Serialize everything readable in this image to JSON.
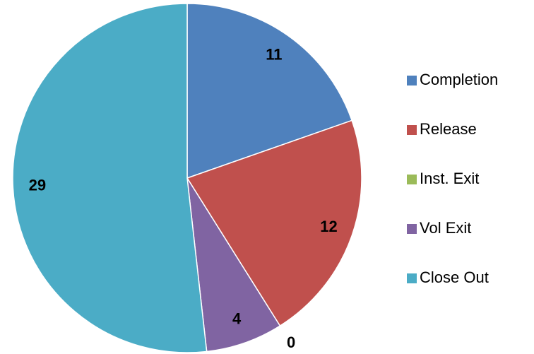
{
  "chart_data": {
    "type": "pie",
    "categories": [
      "Completion",
      "Release",
      "Inst. Exit",
      "Vol Exit",
      "Close Out"
    ],
    "values": [
      11,
      12,
      0,
      4,
      29
    ],
    "colors": [
      "#4f81bd",
      "#c0504d",
      "#9bbb59",
      "#8064a2",
      "#4bacc6"
    ],
    "legend": "right"
  }
}
